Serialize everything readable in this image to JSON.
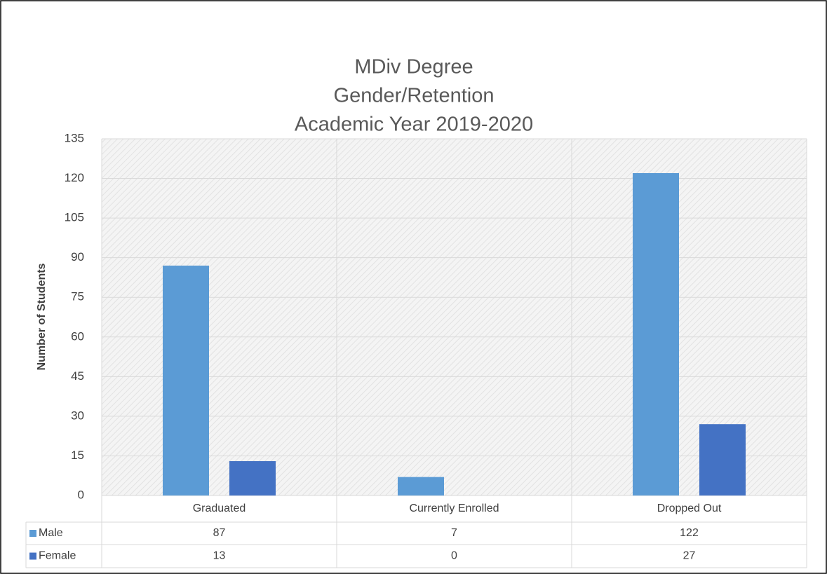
{
  "chart_data": {
    "type": "bar",
    "title": [
      "MDiv Degree",
      "Gender/Retention",
      "Academic Year 2019-2020"
    ],
    "y_label": "Number of Students",
    "categories": [
      "Graduated",
      "Currently Enrolled",
      "Dropped Out"
    ],
    "series": [
      {
        "name": "Male",
        "color": "#5b9bd5",
        "values": [
          87,
          7,
          122
        ]
      },
      {
        "name": "Female",
        "color": "#4472c4",
        "values": [
          13,
          0,
          27
        ]
      }
    ],
    "ylim": [
      0,
      135
    ],
    "yticks": [
      0,
      15,
      30,
      45,
      60,
      75,
      90,
      105,
      120,
      135
    ],
    "grid": true
  }
}
